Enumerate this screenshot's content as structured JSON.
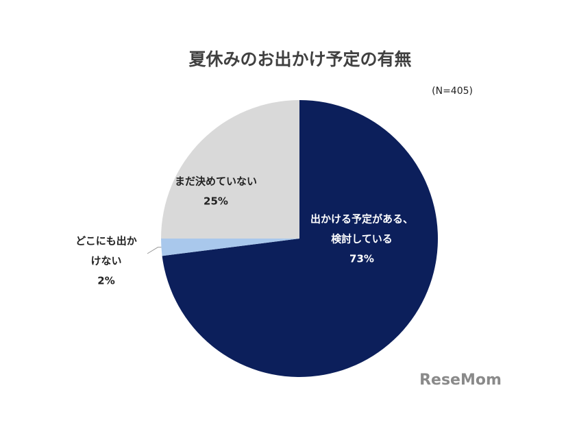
{
  "chart_data": {
    "type": "pie",
    "title": "夏休みのお出かけ予定の有無",
    "subtitle": "(N=405)",
    "categories": [
      [
        "出かける予定がある、",
        "検討している"
      ],
      [
        "どこにも出か",
        "けない"
      ],
      [
        "まだ決めていない"
      ]
    ],
    "values": [
      73,
      2,
      25
    ],
    "value_labels": [
      "73%",
      "2%",
      "25%"
    ],
    "colors": [
      "#0c1f5b",
      "#a9c8ec",
      "#d9d9d9"
    ],
    "watermark": "ReseMom"
  }
}
